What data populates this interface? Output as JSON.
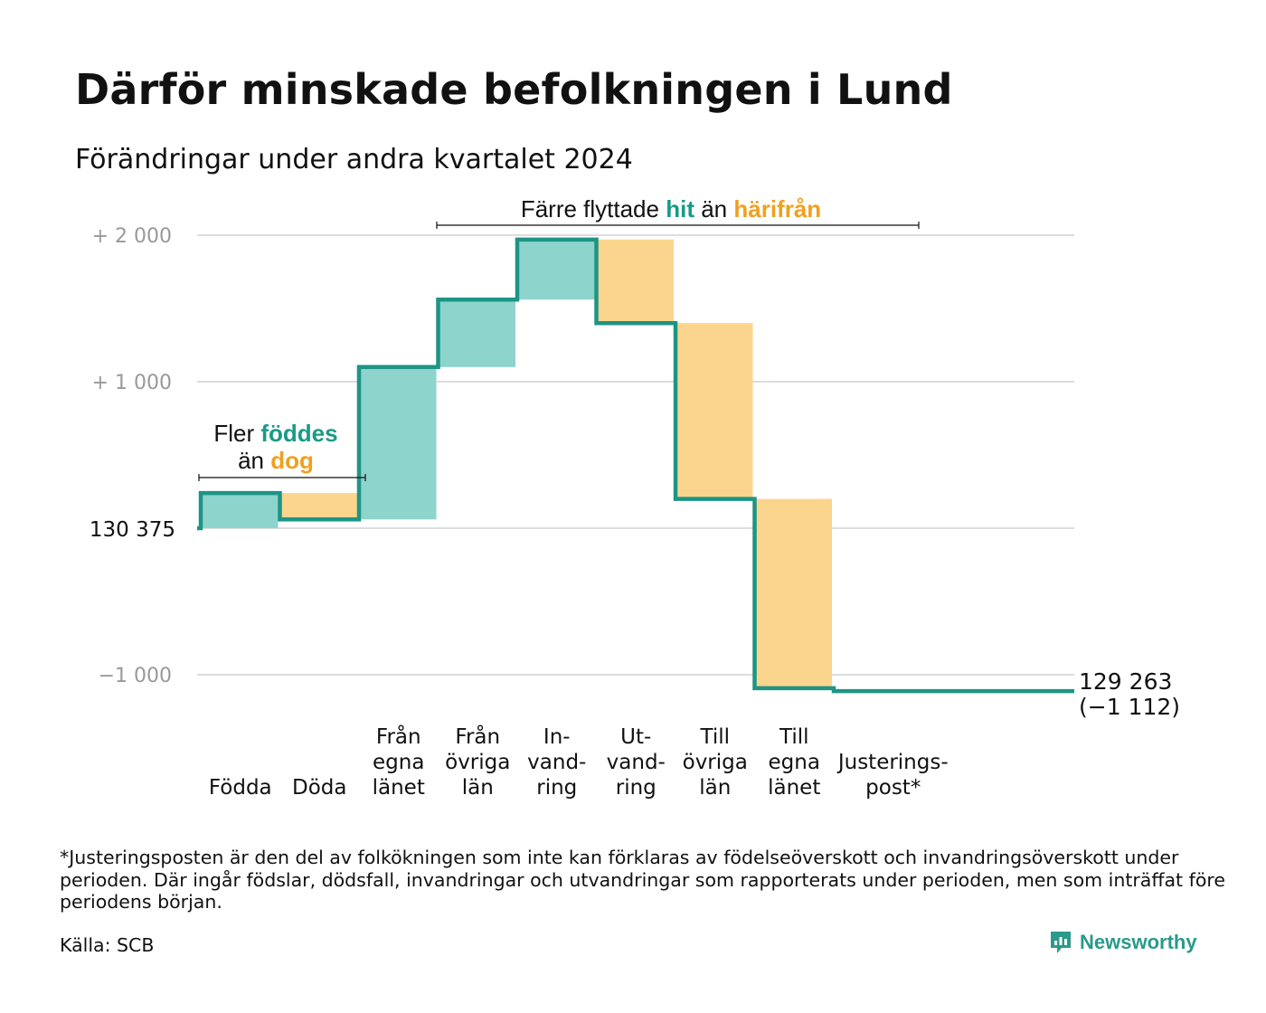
{
  "title": "Därför minskade befolkningen i Lund",
  "subtitle": "Förändringar under andra kvartalet 2024",
  "colors": {
    "teal_line": "#1e9485",
    "teal_fill": "#8dd4cc",
    "orange_fill": "#fbd58d",
    "teal_text": "#1a9a88",
    "orange_text": "#f0a020",
    "grid": "#dddddd",
    "tick": "#999999"
  },
  "chart_data": {
    "type": "waterfall",
    "start_value": 130375,
    "start_label": "130  375",
    "end_value": 129263,
    "end_label": "129 263",
    "net_change_label": "(−1 112)",
    "y_ticks": [
      {
        "value": 2000,
        "label": "+  2  000"
      },
      {
        "value": 1000,
        "label": "+  1  000"
      },
      {
        "value": -1000,
        "label": "−1   000"
      }
    ],
    "ylim": [
      -1100,
      2050
    ],
    "steps": [
      {
        "category": "Födda",
        "label_lines": [
          "Födda"
        ],
        "delta": 240,
        "color": "teal"
      },
      {
        "category": "Döda",
        "label_lines": [
          "Döda"
        ],
        "delta": -180,
        "color": "orange"
      },
      {
        "category": "Från egna länet",
        "label_lines": [
          "Från",
          "egna",
          "länet"
        ],
        "delta": 1040,
        "color": "teal"
      },
      {
        "category": "Från övriga län",
        "label_lines": [
          "Från",
          "övriga",
          "län"
        ],
        "delta": 460,
        "color": "teal"
      },
      {
        "category": "Invandring",
        "label_lines": [
          "In-",
          "vand-",
          "ring"
        ],
        "delta": 410,
        "color": "teal"
      },
      {
        "category": "Utvandring",
        "label_lines": [
          "Ut-",
          "vand-",
          "ring"
        ],
        "delta": -570,
        "color": "orange"
      },
      {
        "category": "Till övriga län",
        "label_lines": [
          "Till",
          "övriga",
          "län"
        ],
        "delta": -1200,
        "color": "orange"
      },
      {
        "category": "Till egna länet",
        "label_lines": [
          "Till",
          "egna",
          "länet"
        ],
        "delta": -1292,
        "color": "orange"
      },
      {
        "category": "Justeringspost*",
        "label_lines": [
          "Justerings-",
          "post*"
        ],
        "delta": -20,
        "color": "teal"
      }
    ],
    "annotations": [
      {
        "id": "births",
        "parts": [
          {
            "text": "Fler ",
            "style": "plain"
          },
          {
            "text": "föddes",
            "style": "teal"
          },
          {
            "text": "än ",
            "style": "plain",
            "newline": true
          },
          {
            "text": "dog",
            "style": "orange"
          }
        ]
      },
      {
        "id": "moves",
        "parts": [
          {
            "text": "Färre flyttade ",
            "style": "plain"
          },
          {
            "text": "hit",
            "style": "teal"
          },
          {
            "text": "  än ",
            "style": "plain"
          },
          {
            "text": "härifrån",
            "style": "orange"
          }
        ]
      }
    ]
  },
  "footnote": "*Justeringsposten är den del av folkökningen som inte kan förklaras av födelseöverskott och invandringsöverskott under perioden. Där ingår födslar, dödsfall, invandringar och utvandringar som rapporterats under perioden, men som inträffat före periodens början.",
  "source": "Källa: SCB",
  "brand": "Newsworthy"
}
